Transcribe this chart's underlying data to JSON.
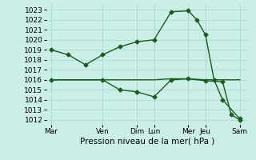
{
  "xlabel": "Pression niveau de la mer( hPa )",
  "bg_color": "#cceee8",
  "grid_color": "#aaddcc",
  "line_color": "#1a5c1a",
  "ylim": [
    1011.5,
    1023.5
  ],
  "yticks": [
    1012,
    1013,
    1014,
    1015,
    1016,
    1017,
    1018,
    1019,
    1020,
    1021,
    1022,
    1023
  ],
  "xtick_labels": [
    "Mar",
    "Ven",
    "Dim",
    "Lun",
    "Mer",
    "Jeu",
    "Sam"
  ],
  "xtick_positions": [
    0,
    3,
    5,
    6,
    8,
    9,
    11
  ],
  "xlim": [
    -0.3,
    11.5
  ],
  "line1_x": [
    0,
    1,
    2,
    3,
    4,
    5,
    6,
    7,
    8,
    8.5,
    9,
    9.5,
    10,
    11
  ],
  "line1_y": [
    1019.0,
    1018.5,
    1017.5,
    1018.5,
    1019.3,
    1019.8,
    1020.0,
    1022.8,
    1022.9,
    1022.0,
    1020.5,
    1016.0,
    1014.0,
    1012.1
  ],
  "line2_x": [
    0,
    3,
    4,
    5,
    6,
    7,
    8,
    9,
    10,
    10.5,
    11
  ],
  "line2_y": [
    1016.0,
    1016.0,
    1015.0,
    1014.8,
    1014.3,
    1016.0,
    1016.1,
    1015.9,
    1015.8,
    1012.5,
    1012.0
  ],
  "line3_x": [
    0,
    3,
    5,
    6,
    7,
    8,
    9,
    10,
    10.5,
    11
  ],
  "line3_y": [
    1016.0,
    1016.0,
    1016.0,
    1016.0,
    1016.1,
    1016.1,
    1016.0,
    1016.0,
    1016.0,
    1016.0
  ],
  "marker": "D",
  "markersize": 2.5,
  "linewidth": 1.0,
  "tick_fontsize": 6.5,
  "xlabel_fontsize": 7.5
}
